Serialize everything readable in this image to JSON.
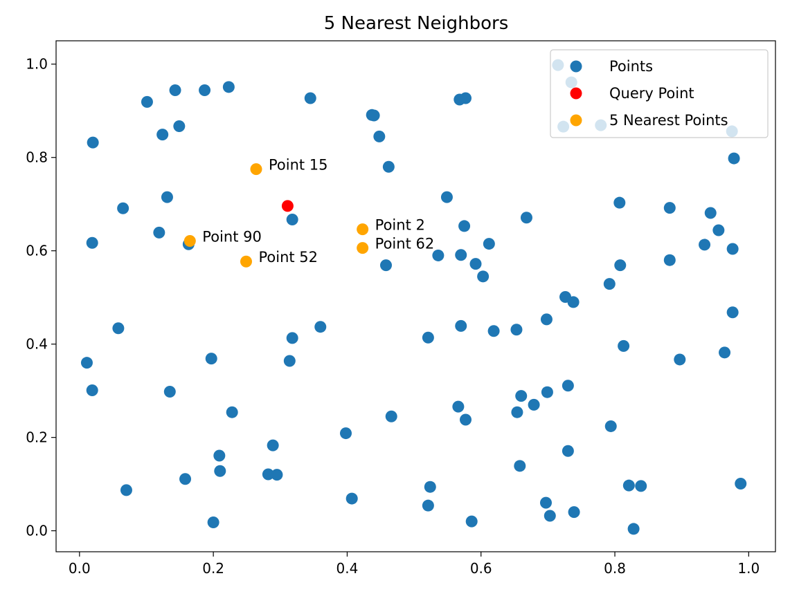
{
  "chart_data": {
    "type": "scatter",
    "title": "5 Nearest Neighbors",
    "xlabel": "",
    "ylabel": "",
    "xlim": [
      -0.035,
      1.04
    ],
    "ylim": [
      -0.045,
      1.05
    ],
    "xticks": [
      0.0,
      0.2,
      0.4,
      0.6,
      0.8,
      1.0
    ],
    "xtick_labels": [
      "0.0",
      "0.2",
      "0.4",
      "0.6",
      "0.8",
      "1.0"
    ],
    "yticks": [
      0.0,
      0.2,
      0.4,
      0.6,
      0.8,
      1.0
    ],
    "ytick_labels": [
      "0.0",
      "0.2",
      "0.4",
      "0.6",
      "0.8",
      "1.0"
    ],
    "grid": false,
    "legend_position": "top-right",
    "series": [
      {
        "name": "Points",
        "color": "#1f77b4",
        "points": [
          [
            0.715,
            0.998
          ],
          [
            0.735,
            0.961
          ],
          [
            0.723,
            0.866
          ],
          [
            0.779,
            0.869
          ],
          [
            0.975,
            0.856
          ],
          [
            0.978,
            0.798
          ],
          [
            0.101,
            0.919
          ],
          [
            0.143,
            0.944
          ],
          [
            0.187,
            0.944
          ],
          [
            0.223,
            0.951
          ],
          [
            0.345,
            0.927
          ],
          [
            0.437,
            0.891
          ],
          [
            0.44,
            0.89
          ],
          [
            0.568,
            0.924
          ],
          [
            0.577,
            0.927
          ],
          [
            0.124,
            0.849
          ],
          [
            0.149,
            0.867
          ],
          [
            0.02,
            0.832
          ],
          [
            0.448,
            0.845
          ],
          [
            0.462,
            0.78
          ],
          [
            0.065,
            0.691
          ],
          [
            0.131,
            0.715
          ],
          [
            0.549,
            0.715
          ],
          [
            0.807,
            0.703
          ],
          [
            0.882,
            0.692
          ],
          [
            0.943,
            0.681
          ],
          [
            0.668,
            0.671
          ],
          [
            0.318,
            0.667
          ],
          [
            0.575,
            0.653
          ],
          [
            0.119,
            0.639
          ],
          [
            0.955,
            0.644
          ],
          [
            0.019,
            0.617
          ],
          [
            0.163,
            0.614
          ],
          [
            0.612,
            0.615
          ],
          [
            0.934,
            0.613
          ],
          [
            0.976,
            0.604
          ],
          [
            0.536,
            0.59
          ],
          [
            0.57,
            0.591
          ],
          [
            0.882,
            0.58
          ],
          [
            0.458,
            0.569
          ],
          [
            0.592,
            0.572
          ],
          [
            0.808,
            0.569
          ],
          [
            0.603,
            0.545
          ],
          [
            0.792,
            0.529
          ],
          [
            0.726,
            0.501
          ],
          [
            0.738,
            0.49
          ],
          [
            0.976,
            0.468
          ],
          [
            0.698,
            0.453
          ],
          [
            0.058,
            0.434
          ],
          [
            0.36,
            0.437
          ],
          [
            0.57,
            0.439
          ],
          [
            0.619,
            0.428
          ],
          [
            0.653,
            0.431
          ],
          [
            0.318,
            0.413
          ],
          [
            0.521,
            0.414
          ],
          [
            0.813,
            0.396
          ],
          [
            0.011,
            0.36
          ],
          [
            0.197,
            0.369
          ],
          [
            0.314,
            0.364
          ],
          [
            0.897,
            0.367
          ],
          [
            0.964,
            0.382
          ],
          [
            0.019,
            0.301
          ],
          [
            0.135,
            0.298
          ],
          [
            0.73,
            0.311
          ],
          [
            0.699,
            0.297
          ],
          [
            0.66,
            0.289
          ],
          [
            0.566,
            0.266
          ],
          [
            0.679,
            0.27
          ],
          [
            0.228,
            0.254
          ],
          [
            0.654,
            0.254
          ],
          [
            0.466,
            0.245
          ],
          [
            0.577,
            0.238
          ],
          [
            0.794,
            0.224
          ],
          [
            0.398,
            0.209
          ],
          [
            0.289,
            0.183
          ],
          [
            0.209,
            0.161
          ],
          [
            0.73,
            0.171
          ],
          [
            0.658,
            0.139
          ],
          [
            0.21,
            0.128
          ],
          [
            0.282,
            0.121
          ],
          [
            0.295,
            0.12
          ],
          [
            0.158,
            0.111
          ],
          [
            0.07,
            0.087
          ],
          [
            0.524,
            0.094
          ],
          [
            0.821,
            0.097
          ],
          [
            0.839,
            0.096
          ],
          [
            0.988,
            0.101
          ],
          [
            0.407,
            0.069
          ],
          [
            0.521,
            0.054
          ],
          [
            0.697,
            0.06
          ],
          [
            0.703,
            0.032
          ],
          [
            0.739,
            0.04
          ],
          [
            0.2,
            0.018
          ],
          [
            0.586,
            0.02
          ],
          [
            0.828,
            0.004
          ]
        ]
      },
      {
        "name": "Query Point",
        "color": "#ff0000",
        "points": [
          [
            0.311,
            0.696
          ]
        ]
      },
      {
        "name": "5 Nearest Points",
        "color": "#ffa500",
        "points": [
          [
            0.264,
            0.775
          ],
          [
            0.165,
            0.621
          ],
          [
            0.249,
            0.577
          ],
          [
            0.423,
            0.646
          ],
          [
            0.423,
            0.606
          ]
        ]
      }
    ],
    "annotations": [
      {
        "text": "Point 15",
        "x": 0.264,
        "y": 0.775
      },
      {
        "text": "Point 90",
        "x": 0.165,
        "y": 0.621
      },
      {
        "text": "Point 52",
        "x": 0.249,
        "y": 0.577
      },
      {
        "text": "Point 2",
        "x": 0.423,
        "y": 0.646
      },
      {
        "text": "Point 62",
        "x": 0.423,
        "y": 0.606
      }
    ]
  }
}
